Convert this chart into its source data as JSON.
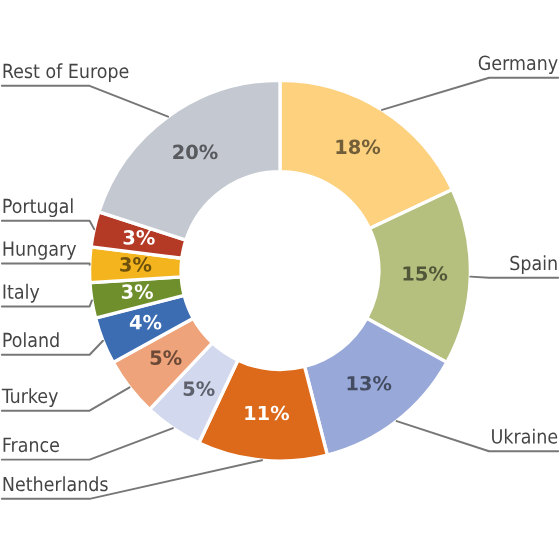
{
  "chart_data": {
    "type": "donut",
    "categories": [
      "Germany",
      "Spain",
      "Ukraine",
      "Netherlands",
      "France",
      "Turkey",
      "Poland",
      "Italy",
      "Hungary",
      "Portugal",
      "Rest of Europe"
    ],
    "values": [
      18,
      15,
      13,
      11,
      5,
      5,
      4,
      3,
      3,
      3,
      20
    ],
    "colors": [
      "#fdd17e",
      "#b5c07f",
      "#98a8d8",
      "#dd6a1a",
      "#d2d8ee",
      "#eea37a",
      "#3c6db3",
      "#6f8f2c",
      "#f3b41d",
      "#b53a26",
      "#c4c8d0"
    ],
    "value_labels": [
      "18%",
      "15%",
      "13%",
      "11%",
      "5%",
      "5%",
      "4%",
      "3%",
      "3%",
      "3%",
      "20%"
    ]
  }
}
